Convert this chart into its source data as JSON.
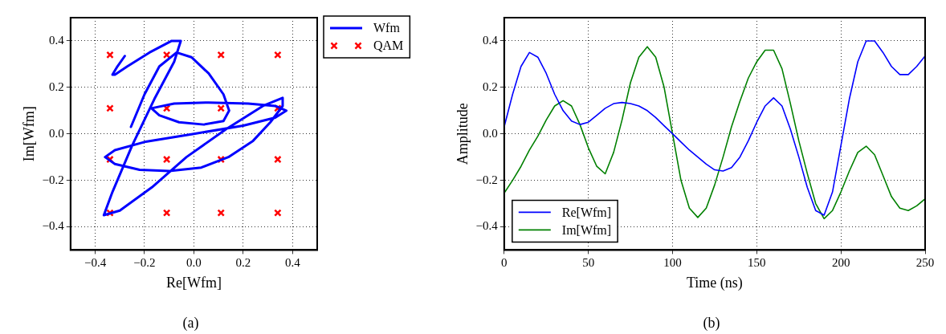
{
  "chart_data": [
    {
      "type": "scatter",
      "xlabel": "Re[Wfm]",
      "ylabel": "Im[Wfm]",
      "annotations": [
        "(a)"
      ],
      "xlim": [
        -0.5,
        0.5
      ],
      "ylim": [
        -0.5,
        0.5
      ],
      "xticks": [
        {
          "value": -0.4,
          "label": "−0.4"
        },
        {
          "value": -0.2,
          "label": "−0.2"
        },
        {
          "value": 0,
          "label": "0.0"
        },
        {
          "value": 0.2,
          "label": "0.2"
        },
        {
          "value": 0.4,
          "label": "0.4"
        }
      ],
      "yticks": [
        {
          "value": -0.4,
          "label": "−0.4"
        },
        {
          "value": -0.2,
          "label": "−0.2"
        },
        {
          "value": 0,
          "label": "0.0"
        },
        {
          "value": 0.2,
          "label": "0.2"
        },
        {
          "value": 0.4,
          "label": "0.4"
        }
      ],
      "grid": true,
      "legend": "right",
      "series": [
        {
          "name": "Wfm",
          "type": "line",
          "marker": "none",
          "color": "#0000ff",
          "x": [
            -0.255,
            -0.2,
            -0.14,
            -0.07,
            -0.01,
            0.06,
            0.12,
            0.143,
            0.12,
            0.04,
            -0.06,
            -0.14,
            -0.172,
            -0.08,
            0.06,
            0.22,
            0.33,
            0.375,
            0.33,
            0.2,
            0.0,
            -0.2,
            -0.32,
            -0.36,
            -0.32,
            -0.22,
            -0.1,
            0.03,
            0.14,
            0.24,
            0.31,
            0.36,
            0.36,
            0.28,
            0.13,
            -0.03,
            -0.17,
            -0.3,
            -0.365,
            -0.33,
            -0.25,
            -0.16,
            -0.08,
            -0.053,
            -0.09,
            -0.18,
            -0.27,
            -0.32,
            -0.33,
            -0.31,
            -0.28
          ],
          "values": [
            0.03,
            0.17,
            0.29,
            0.35,
            0.33,
            0.26,
            0.17,
            0.1,
            0.055,
            0.04,
            0.05,
            0.08,
            0.11,
            0.13,
            0.135,
            0.13,
            0.12,
            0.1,
            0.07,
            0.035,
            0.0,
            -0.035,
            -0.07,
            -0.1,
            -0.13,
            -0.155,
            -0.16,
            -0.145,
            -0.1,
            -0.03,
            0.05,
            0.12,
            0.155,
            0.12,
            0.02,
            -0.1,
            -0.23,
            -0.33,
            -0.35,
            -0.25,
            -0.05,
            0.15,
            0.31,
            0.4,
            0.4,
            0.35,
            0.29,
            0.255,
            0.255,
            0.29,
            0.335
          ]
        },
        {
          "name": "QAM",
          "type": "scatter",
          "marker": "cross",
          "color": "#ff0000",
          "x": [
            -0.34,
            -0.11,
            0.11,
            0.34,
            -0.34,
            -0.11,
            0.11,
            0.34,
            -0.34,
            -0.11,
            0.11,
            0.34,
            -0.34,
            -0.11,
            0.11,
            0.34
          ],
          "values": [
            0.34,
            0.34,
            0.34,
            0.34,
            0.11,
            0.11,
            0.11,
            0.11,
            -0.11,
            -0.11,
            -0.11,
            -0.11,
            -0.34,
            -0.34,
            -0.34,
            -0.34
          ]
        }
      ]
    },
    {
      "type": "line",
      "xlabel": "Time (ns)",
      "ylabel": "Amplitude",
      "annotations": [
        "(b)"
      ],
      "x": [
        0,
        5,
        10,
        15,
        20,
        25,
        30,
        35,
        40,
        45,
        50,
        55,
        60,
        65,
        70,
        75,
        80,
        85,
        90,
        95,
        100,
        105,
        110,
        115,
        120,
        125,
        130,
        135,
        140,
        145,
        150,
        155,
        160,
        165,
        170,
        175,
        180,
        185,
        190,
        195,
        200,
        205,
        210,
        215,
        220,
        225,
        230,
        235,
        240,
        245,
        250
      ],
      "xlim": [
        0,
        250
      ],
      "ylim": [
        -0.5,
        0.5
      ],
      "xticks": [
        0,
        50,
        100,
        150,
        200,
        250
      ],
      "yticks": [
        {
          "value": -0.4,
          "label": "−0.4"
        },
        {
          "value": -0.2,
          "label": "−0.2"
        },
        {
          "value": 0,
          "label": "0.0"
        },
        {
          "value": 0.2,
          "label": "0.2"
        },
        {
          "value": 0.4,
          "label": "0.4"
        }
      ],
      "grid": true,
      "legend": "bottom left",
      "marker": "none",
      "series": [
        {
          "name": "Re[Wfm]",
          "color": "#0000ff",
          "values": [
            0.03,
            0.17,
            0.29,
            0.35,
            0.33,
            0.26,
            0.17,
            0.1,
            0.055,
            0.04,
            0.05,
            0.08,
            0.11,
            0.13,
            0.135,
            0.13,
            0.12,
            0.1,
            0.07,
            0.035,
            0.0,
            -0.035,
            -0.07,
            -0.1,
            -0.13,
            -0.155,
            -0.16,
            -0.145,
            -0.1,
            -0.03,
            0.05,
            0.12,
            0.155,
            0.12,
            0.02,
            -0.1,
            -0.23,
            -0.33,
            -0.35,
            -0.25,
            -0.05,
            0.15,
            0.31,
            0.4,
            0.4,
            0.35,
            0.29,
            0.255,
            0.255,
            0.29,
            0.335
          ]
        },
        {
          "name": "Im[Wfm]",
          "color": "#008000",
          "values": [
            -0.255,
            -0.2,
            -0.14,
            -0.07,
            -0.01,
            0.06,
            0.12,
            0.143,
            0.12,
            0.04,
            -0.06,
            -0.14,
            -0.172,
            -0.08,
            0.06,
            0.22,
            0.33,
            0.375,
            0.33,
            0.2,
            0.0,
            -0.2,
            -0.32,
            -0.36,
            -0.32,
            -0.22,
            -0.1,
            0.03,
            0.14,
            0.24,
            0.31,
            0.36,
            0.36,
            0.28,
            0.13,
            -0.03,
            -0.17,
            -0.3,
            -0.365,
            -0.33,
            -0.25,
            -0.16,
            -0.08,
            -0.053,
            -0.09,
            -0.18,
            -0.27,
            -0.32,
            -0.33,
            -0.31,
            -0.28
          ]
        }
      ]
    }
  ]
}
